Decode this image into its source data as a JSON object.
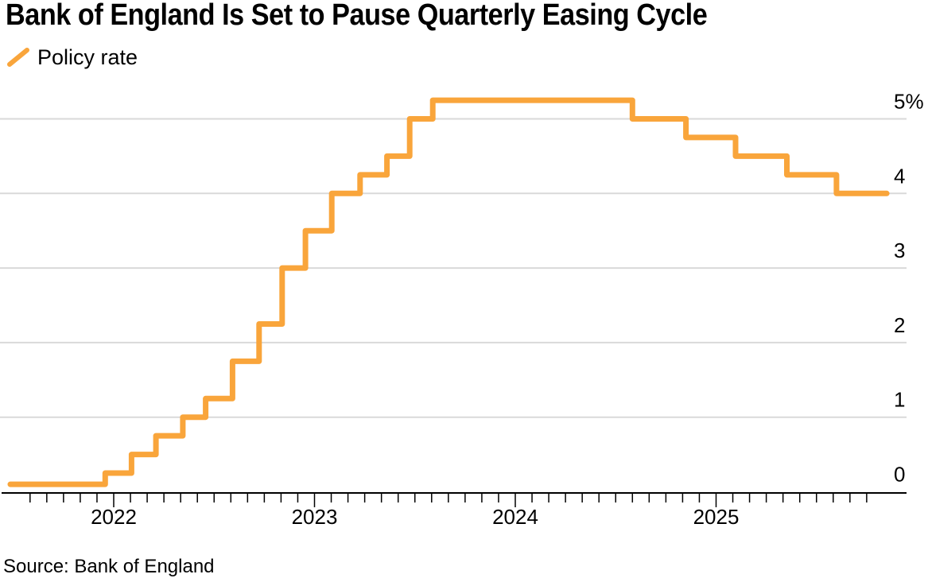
{
  "header": {
    "title": "Bank of England Is Set to Pause Quarterly Easing Cycle"
  },
  "legend": {
    "label": "Policy rate",
    "color": "#F9A53B"
  },
  "source": {
    "text": "Source: Bank of England"
  },
  "chart_data": {
    "type": "line",
    "subtype": "step-after",
    "title": "Bank of England Is Set to Pause Quarterly Easing Cycle",
    "xlabel": "",
    "ylabel": "",
    "y_unit": "%",
    "ylim": [
      0,
      5.4
    ],
    "y_ticks": [
      0,
      1,
      2,
      3,
      4,
      5
    ],
    "y_tick_labels": [
      "0",
      "1",
      "2",
      "3",
      "4",
      "5%"
    ],
    "x_range": [
      "2021-06-26",
      "2025-11-07"
    ],
    "x_year_ticks": [
      2022,
      2023,
      2024,
      2025
    ],
    "x_minor_ticks": "monthly",
    "x_minor_tick_range": [
      "2021-08-01",
      "2025-10-01"
    ],
    "grid": "horizontal",
    "grid_color": "#D9D9D9",
    "axis_color": "#000000",
    "legend_position": "top-left",
    "series": [
      {
        "name": "Policy rate",
        "color": "#F9A53B",
        "points": [
          {
            "date": "2021-06-26",
            "rate": 0.1
          },
          {
            "date": "2021-12-16",
            "rate": 0.25
          },
          {
            "date": "2022-02-03",
            "rate": 0.5
          },
          {
            "date": "2022-03-17",
            "rate": 0.75
          },
          {
            "date": "2022-05-05",
            "rate": 1.0
          },
          {
            "date": "2022-06-16",
            "rate": 1.25
          },
          {
            "date": "2022-08-04",
            "rate": 1.75
          },
          {
            "date": "2022-09-22",
            "rate": 2.25
          },
          {
            "date": "2022-11-03",
            "rate": 3.0
          },
          {
            "date": "2022-12-15",
            "rate": 3.5
          },
          {
            "date": "2023-02-02",
            "rate": 4.0
          },
          {
            "date": "2023-03-23",
            "rate": 4.25
          },
          {
            "date": "2023-05-11",
            "rate": 4.5
          },
          {
            "date": "2023-06-22",
            "rate": 5.0
          },
          {
            "date": "2023-08-03",
            "rate": 5.25
          },
          {
            "date": "2024-08-01",
            "rate": 5.0
          },
          {
            "date": "2024-11-07",
            "rate": 4.75
          },
          {
            "date": "2025-02-06",
            "rate": 4.5
          },
          {
            "date": "2025-05-08",
            "rate": 4.25
          },
          {
            "date": "2025-08-07",
            "rate": 4.0
          }
        ]
      }
    ]
  }
}
